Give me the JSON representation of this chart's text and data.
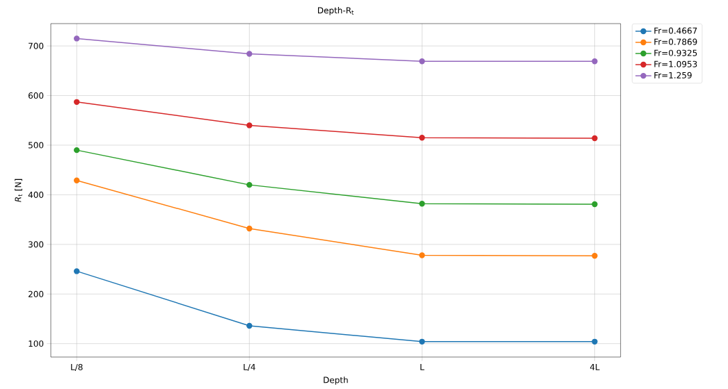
{
  "chart_data": {
    "type": "line",
    "title": "Depth-R$_{t}$",
    "xlabel": "Depth",
    "ylabel": "*R*$_{t}$ [N]",
    "categories": [
      "L/8",
      "L/4",
      "L",
      "4L"
    ],
    "series": [
      {
        "name": "Fr=0.4667",
        "color": "#1f77b4",
        "values": [
          246,
          136,
          104,
          104
        ]
      },
      {
        "name": "Fr=0.7869",
        "color": "#ff7f0e",
        "values": [
          429,
          332,
          278,
          277
        ]
      },
      {
        "name": "Fr=0.9325",
        "color": "#2ca02c",
        "values": [
          490,
          420,
          382,
          381
        ]
      },
      {
        "name": "Fr=1.0953",
        "color": "#d62728",
        "values": [
          587,
          540,
          515,
          514
        ]
      },
      {
        "name": "Fr=1.259",
        "color": "#9467bd",
        "values": [
          715,
          684,
          669,
          669
        ]
      }
    ],
    "ylim": [
      73,
      745
    ],
    "yticks": [
      100,
      200,
      300,
      400,
      500,
      600,
      700
    ],
    "grid": true,
    "legend": "top right",
    "marker": "circle",
    "line_style": "solid"
  }
}
